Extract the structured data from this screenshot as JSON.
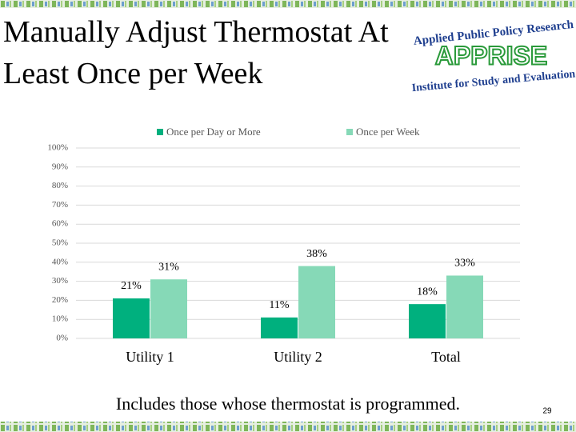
{
  "title": "Manually Adjust Thermostat At Least Once per Week",
  "logo": {
    "top": "Applied Public Policy Research",
    "name": "APPRISE",
    "bottom": "Institute for Study and Evaluation"
  },
  "chart_data": {
    "type": "bar",
    "categories": [
      "Utility 1",
      "Utility 2",
      "Total"
    ],
    "series": [
      {
        "name": "Once per Day or More",
        "color": "#00b07e",
        "values": [
          21,
          11,
          18
        ],
        "value_labels": [
          "21%",
          "11%",
          "18%"
        ]
      },
      {
        "name": "Once per Week",
        "color": "#86d9b7",
        "values": [
          31,
          38,
          33
        ],
        "value_labels": [
          "31%",
          "38%",
          "33%"
        ]
      }
    ],
    "ylim": [
      0,
      100
    ],
    "yticks": [
      {
        "value": 0,
        "label": "0%"
      },
      {
        "value": 10,
        "label": "10%"
      },
      {
        "value": 20,
        "label": "20%"
      },
      {
        "value": 30,
        "label": "30%"
      },
      {
        "value": 40,
        "label": "40%"
      },
      {
        "value": 50,
        "label": "50%"
      },
      {
        "value": 60,
        "label": "60%"
      },
      {
        "value": 70,
        "label": "70%"
      },
      {
        "value": 80,
        "label": "80%"
      },
      {
        "value": 90,
        "label": "90%"
      },
      {
        "value": 100,
        "label": "100%"
      }
    ],
    "grid": true,
    "legend": "top"
  },
  "footnote": "Includes those whose thermostat is programmed.",
  "page_number": "29"
}
